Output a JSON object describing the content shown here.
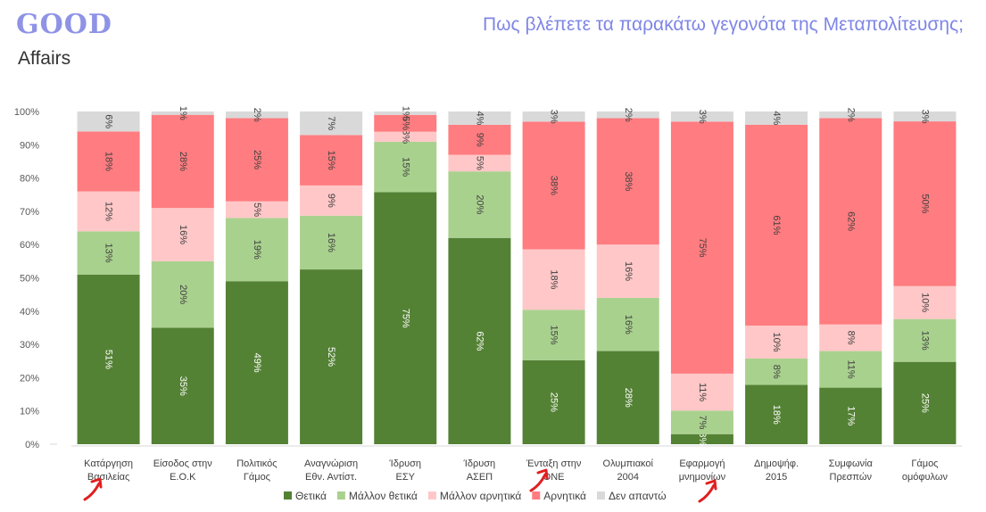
{
  "logo": {
    "top": "GOOD",
    "bottom": "Affairs"
  },
  "chart_data": {
    "type": "bar",
    "stacked": true,
    "percent": true,
    "title": "Πως βλέπετε τα παρακάτω γεγονότα της Μεταπολίτευσης;",
    "categories": [
      [
        "Κατάργηση",
        "Βασιλείας"
      ],
      [
        "Είσοδος στην",
        "Ε.Ο.Κ"
      ],
      [
        "Πολιτικός",
        "Γάμος"
      ],
      [
        "Αναγνώριση",
        "Εθν. Αντίστ."
      ],
      [
        "Ίδρυση",
        "ΕΣΥ"
      ],
      [
        "Ίδρυση",
        "ΑΣΕΠ"
      ],
      [
        "Ένταξη στην",
        "ΟΝΕ"
      ],
      [
        "Ολυμπιακοί",
        "2004"
      ],
      [
        "Εφαρμογή",
        "μνημονίων"
      ],
      [
        "Δημοψήφ.",
        "2015"
      ],
      [
        "Συμφωνία",
        "Πρεσπών"
      ],
      [
        "Γάμος",
        "ομόφυλων"
      ]
    ],
    "series": [
      {
        "name": "Θετικά",
        "color": "#548235",
        "values": [
          51,
          35,
          49,
          52,
          75,
          62,
          25,
          28,
          3,
          18,
          17,
          25
        ]
      },
      {
        "name": "Μάλλον θετικά",
        "color": "#a9d18e",
        "values": [
          13,
          20,
          19,
          16,
          15,
          20,
          15,
          16,
          7,
          8,
          11,
          13
        ]
      },
      {
        "name": "Μάλλον αρνητικά",
        "color": "#ffc7c7",
        "values": [
          12,
          16,
          5,
          9,
          3,
          5,
          18,
          16,
          11,
          10,
          8,
          10
        ]
      },
      {
        "name": "Αρνητικά",
        "color": "#ff7c80",
        "values": [
          18,
          28,
          25,
          15,
          5,
          9,
          38,
          38,
          75,
          61,
          62,
          50
        ]
      },
      {
        "name": "Δεν απαντώ",
        "color": "#d9d9d9",
        "values": [
          6,
          1,
          2,
          7,
          1,
          4,
          3,
          2,
          3,
          4,
          2,
          3
        ]
      }
    ],
    "yticks": [
      "0%",
      "10%",
      "20%",
      "30%",
      "40%",
      "50%",
      "60%",
      "70%",
      "80%",
      "90%",
      "100%"
    ],
    "ylim": [
      0,
      100
    ],
    "grid": false,
    "legend": "bottom"
  }
}
